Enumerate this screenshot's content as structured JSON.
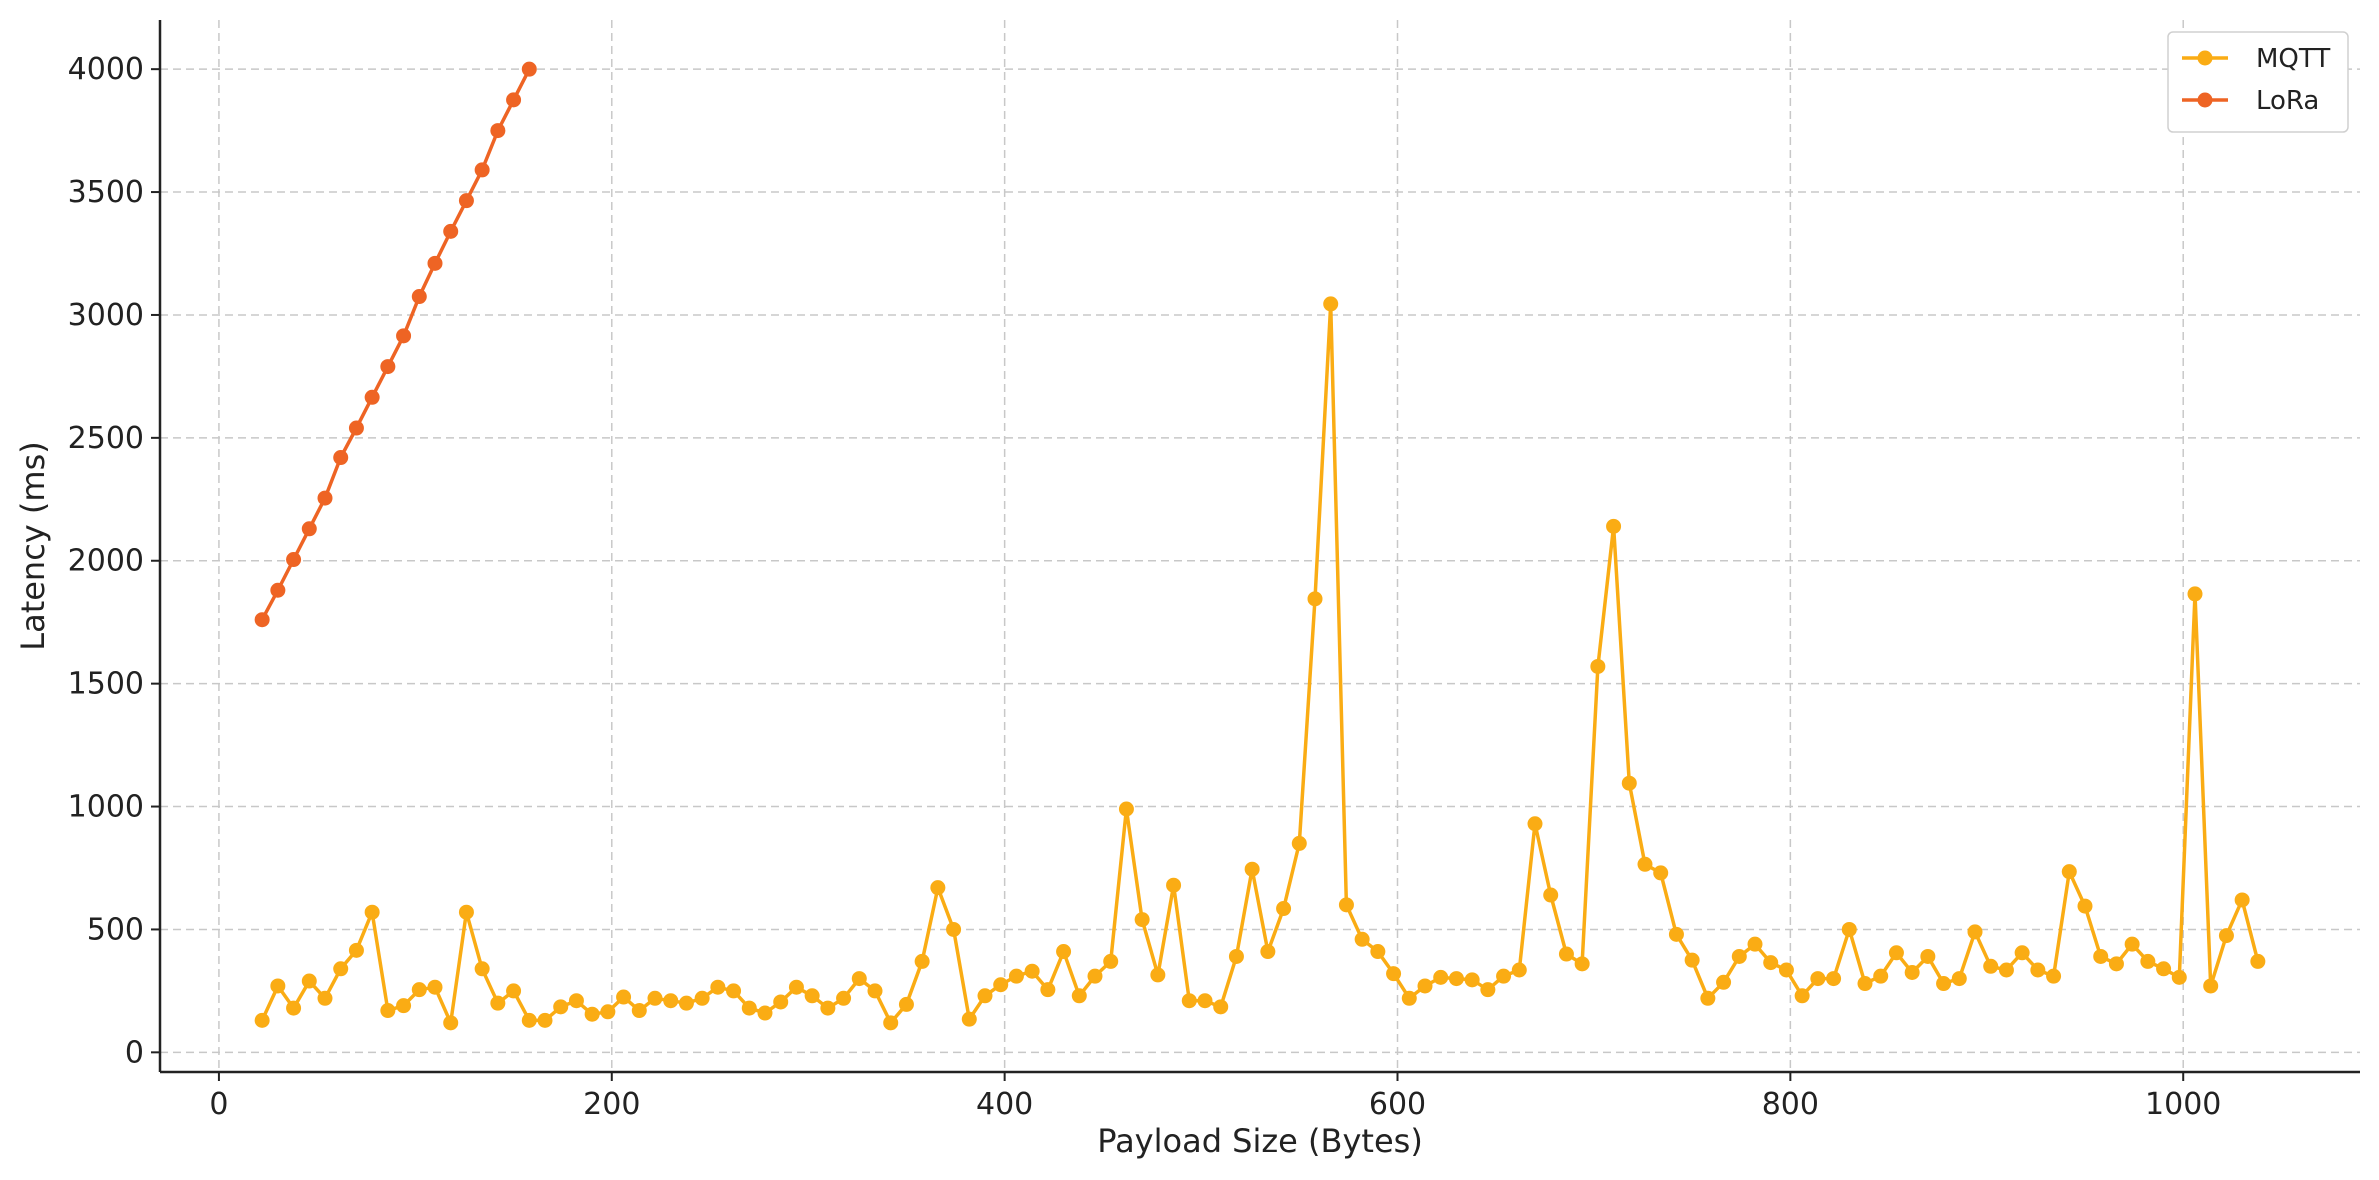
{
  "chart_data": {
    "type": "line",
    "title": "",
    "xlabel": "Payload Size (Bytes)",
    "ylabel": "Latency (ms)",
    "xlim": [
      -30,
      1090
    ],
    "ylim": [
      -80,
      4200
    ],
    "x_ticks": [
      0,
      200,
      400,
      600,
      800,
      1000
    ],
    "y_ticks": [
      0,
      500,
      1000,
      1500,
      2000,
      2500,
      3000,
      3500,
      4000
    ],
    "grid": true,
    "legend_position": "top-right",
    "series": [
      {
        "name": "MQTT",
        "color": "#FAAC14",
        "x": [
          22,
          30,
          38,
          46,
          54,
          62,
          70,
          78,
          86,
          94,
          102,
          110,
          118,
          126,
          134,
          142,
          150,
          158,
          166,
          174,
          182,
          190,
          198,
          206,
          214,
          222,
          230,
          238,
          246,
          254,
          262,
          270,
          278,
          286,
          294,
          302,
          310,
          318,
          326,
          334,
          342,
          350,
          358,
          366,
          374,
          382,
          390,
          398,
          406,
          414,
          422,
          430,
          438,
          446,
          454,
          462,
          470,
          478,
          486,
          494,
          502,
          510,
          518,
          526,
          534,
          542,
          550,
          558,
          566,
          574,
          582,
          590,
          598,
          606,
          614,
          622,
          630,
          638,
          646,
          654,
          662,
          670,
          678,
          686,
          694,
          702,
          710,
          718,
          726,
          734,
          742,
          750,
          758,
          766,
          774,
          782,
          790,
          798,
          806,
          814,
          822,
          830,
          838,
          846,
          854,
          862,
          870,
          878,
          886,
          894,
          902,
          910,
          918,
          926,
          934,
          942,
          950,
          958,
          966,
          974,
          982,
          990,
          998,
          1006,
          1014,
          1022,
          1030,
          1038
        ],
        "y": [
          130,
          270,
          180,
          290,
          220,
          340,
          415,
          570,
          170,
          190,
          255,
          265,
          120,
          570,
          340,
          200,
          250,
          130,
          130,
          185,
          210,
          155,
          165,
          225,
          170,
          220,
          210,
          200,
          220,
          265,
          250,
          180,
          160,
          205,
          265,
          230,
          180,
          220,
          300,
          250,
          120,
          195,
          370,
          670,
          500,
          135,
          230,
          275,
          310,
          330,
          255,
          410,
          230,
          310,
          370,
          990,
          540,
          315,
          680,
          210,
          210,
          185,
          390,
          745,
          410,
          585,
          850,
          1845,
          3045,
          600,
          460,
          410,
          320,
          220,
          270,
          305,
          300,
          295,
          255,
          310,
          335,
          930,
          640,
          400,
          360,
          1570,
          2140,
          1095,
          765,
          730,
          480,
          375,
          220,
          285,
          390,
          440,
          365,
          335,
          230,
          300,
          300,
          500,
          280,
          310,
          405,
          325,
          390,
          280,
          300,
          490,
          350,
          335,
          405,
          335,
          310,
          735,
          595,
          390,
          360,
          440,
          370,
          340,
          305,
          1865,
          270,
          475,
          620,
          370
        ]
      },
      {
        "name": "LoRa",
        "color": "#EE6424",
        "x": [
          22,
          30,
          38,
          46,
          54,
          62,
          70,
          78,
          86,
          94,
          102,
          110,
          118,
          126,
          134,
          142,
          150,
          158
        ],
        "y": [
          1760,
          1880,
          2005,
          2130,
          2255,
          2420,
          2540,
          2665,
          2790,
          2915,
          3075,
          3210,
          3340,
          3465,
          3590,
          3750,
          3875,
          4000
        ]
      }
    ]
  }
}
